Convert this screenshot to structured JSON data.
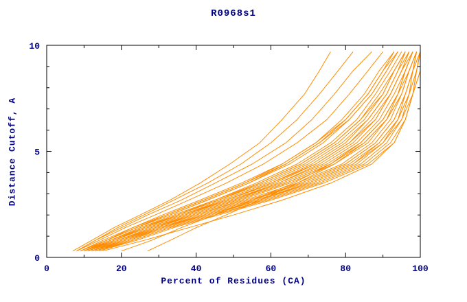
{
  "chart_data": {
    "type": "line",
    "title": "R0968s1",
    "xlabel": "Percent of Residues (CA)",
    "ylabel": "Distance Cutoff, A",
    "xlim": [
      0,
      100
    ],
    "ylim": [
      0,
      10
    ],
    "xticks": [
      0,
      20,
      40,
      60,
      80,
      100
    ],
    "xminorticks": [
      10,
      30,
      50,
      70,
      90
    ],
    "yticks": [
      0,
      5,
      10
    ],
    "yminorticks": [
      1,
      2,
      3,
      4,
      6,
      7,
      8,
      9
    ],
    "grid": false,
    "legend": "none",
    "line_color": "#ff8c00",
    "axis_color": "#000000",
    "text_color": "#000080",
    "background_color": "#ffffff",
    "y_values": [
      0.3,
      0.8,
      1.4,
      2.0,
      2.7,
      3.5,
      4.4,
      5.4,
      6.5,
      7.7,
      8.8,
      9.7
    ],
    "series_x": [
      [
        13,
        23,
        33,
        45,
        59,
        73,
        85,
        92,
        96,
        98,
        99,
        100
      ],
      [
        12,
        21,
        31,
        43,
        57,
        71,
        83,
        90,
        95,
        97,
        99,
        100
      ],
      [
        14,
        24,
        34,
        46,
        60,
        74,
        86,
        93,
        96,
        98,
        100,
        100
      ],
      [
        12,
        20,
        30,
        41,
        54,
        68,
        80,
        88,
        93,
        96,
        98,
        100
      ],
      [
        11,
        19,
        29,
        40,
        53,
        67,
        79,
        87,
        92,
        95,
        97,
        99
      ],
      [
        13,
        22,
        32,
        44,
        57,
        70,
        82,
        89,
        94,
        97,
        98,
        100
      ],
      [
        11,
        18,
        27,
        37,
        49,
        62,
        74,
        83,
        89,
        93,
        96,
        98
      ],
      [
        10,
        17,
        26,
        36,
        48,
        60,
        72,
        81,
        87,
        92,
        95,
        97
      ],
      [
        12,
        20,
        29,
        39,
        51,
        64,
        76,
        84,
        90,
        94,
        96,
        98
      ],
      [
        11,
        19,
        28,
        38,
        50,
        62,
        73,
        82,
        88,
        92,
        95,
        97
      ],
      [
        10,
        18,
        27,
        37,
        48,
        60,
        71,
        80,
        86,
        91,
        94,
        96
      ],
      [
        9,
        16,
        24,
        33,
        43,
        54,
        65,
        74,
        81,
        87,
        91,
        94
      ],
      [
        10,
        17,
        25,
        34,
        45,
        56,
        67,
        76,
        83,
        88,
        92,
        95
      ],
      [
        11,
        18,
        26,
        35,
        46,
        58,
        69,
        78,
        85,
        90,
        93,
        96
      ],
      [
        9,
        15,
        23,
        31,
        41,
        52,
        63,
        72,
        79,
        85,
        89,
        93
      ],
      [
        8,
        14,
        21,
        29,
        38,
        48,
        58,
        67,
        75,
        81,
        86,
        90
      ],
      [
        9,
        16,
        23,
        32,
        42,
        53,
        63,
        72,
        80,
        86,
        90,
        93
      ],
      [
        10,
        16,
        24,
        33,
        43,
        54,
        64,
        73,
        81,
        87,
        91,
        94
      ],
      [
        8,
        13,
        20,
        27,
        36,
        45,
        55,
        64,
        71,
        77,
        82,
        87
      ],
      [
        8,
        13,
        19,
        26,
        34,
        43,
        52,
        60,
        67,
        73,
        78,
        82
      ],
      [
        7,
        12,
        18,
        25,
        33,
        41,
        49,
        57,
        63,
        69,
        73,
        76
      ],
      [
        12,
        21,
        30,
        42,
        55,
        69,
        81,
        89,
        94,
        96,
        98,
        99
      ],
      [
        13,
        22,
        31,
        43,
        56,
        70,
        82,
        90,
        94,
        97,
        99,
        100
      ],
      [
        11,
        19,
        28,
        39,
        51,
        64,
        76,
        85,
        91,
        94,
        97,
        99
      ],
      [
        10,
        18,
        26,
        36,
        47,
        59,
        70,
        79,
        86,
        91,
        94,
        97
      ],
      [
        12,
        20,
        29,
        40,
        52,
        65,
        77,
        86,
        91,
        95,
        97,
        99
      ],
      [
        11,
        18,
        27,
        37,
        48,
        61,
        72,
        81,
        88,
        92,
        95,
        98
      ],
      [
        10,
        17,
        25,
        35,
        46,
        57,
        68,
        77,
        84,
        89,
        93,
        96
      ],
      [
        9,
        16,
        24,
        32,
        42,
        53,
        64,
        73,
        80,
        86,
        90,
        94
      ],
      [
        13,
        21,
        31,
        42,
        55,
        68,
        80,
        88,
        93,
        96,
        98,
        99
      ],
      [
        12,
        19,
        28,
        38,
        50,
        63,
        75,
        84,
        90,
        94,
        96,
        98
      ],
      [
        14,
        23,
        33,
        45,
        58,
        72,
        84,
        91,
        95,
        98,
        99,
        100
      ],
      [
        10,
        17,
        26,
        35,
        45,
        57,
        68,
        77,
        84,
        90,
        93,
        96
      ],
      [
        15,
        26,
        38,
        50,
        63,
        76,
        87,
        93,
        96,
        98,
        100,
        100
      ],
      [
        20,
        28,
        36,
        45,
        55,
        66,
        76,
        84,
        90,
        94,
        96,
        98
      ],
      [
        27,
        33,
        40,
        48,
        57,
        67,
        77,
        85,
        91,
        95,
        97,
        99
      ]
    ]
  }
}
